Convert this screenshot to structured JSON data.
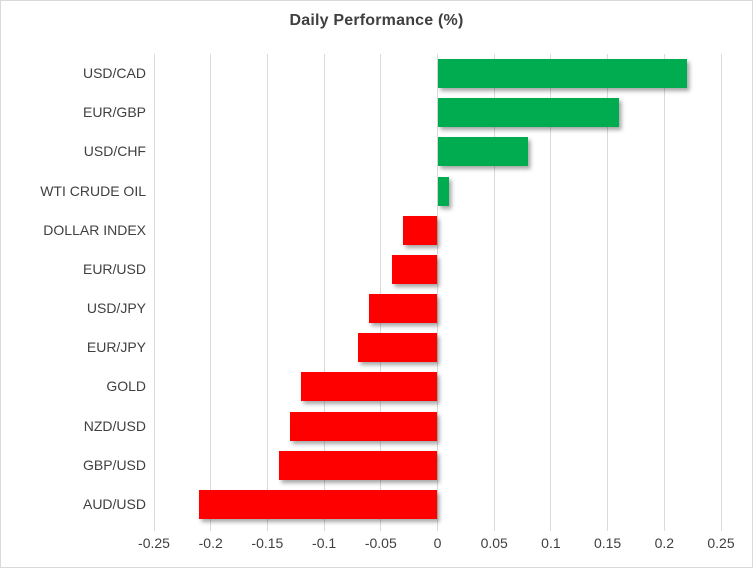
{
  "title": "Daily Performance (%)",
  "colors": {
    "positive": "#00AC4F",
    "negative": "#FF0000",
    "gridline": "#D9D9D9",
    "axis_text": "#404040",
    "title_text": "#3F3F3F",
    "frame_border": "#D9D9D9",
    "background": "#FFFFFF"
  },
  "chart_data": {
    "type": "bar",
    "orientation": "horizontal",
    "title": "Daily Performance (%)",
    "categories": [
      "USD/CAD",
      "EUR/GBP",
      "USD/CHF",
      "WTI CRUDE OIL",
      "DOLLAR INDEX",
      "EUR/USD",
      "USD/JPY",
      "EUR/JPY",
      "GOLD",
      "NZD/USD",
      "GBP/USD",
      "AUD/USD"
    ],
    "values": [
      0.22,
      0.16,
      0.08,
      0.01,
      -0.03,
      -0.04,
      -0.06,
      -0.07,
      -0.12,
      -0.13,
      -0.14,
      -0.21
    ],
    "xlabel": "",
    "ylabel": "",
    "xlim": [
      -0.25,
      0.25
    ],
    "xticks": [
      -0.25,
      -0.2,
      -0.15,
      -0.1,
      -0.05,
      0,
      0.05,
      0.1,
      0.15,
      0.2,
      0.25
    ],
    "xtick_labels": [
      "-0.25",
      "-0.2",
      "-0.15",
      "-0.1",
      "-0.05",
      "0",
      "0.05",
      "0.1",
      "0.15",
      "0.2",
      "0.25"
    ],
    "grid": true,
    "legend": false
  }
}
